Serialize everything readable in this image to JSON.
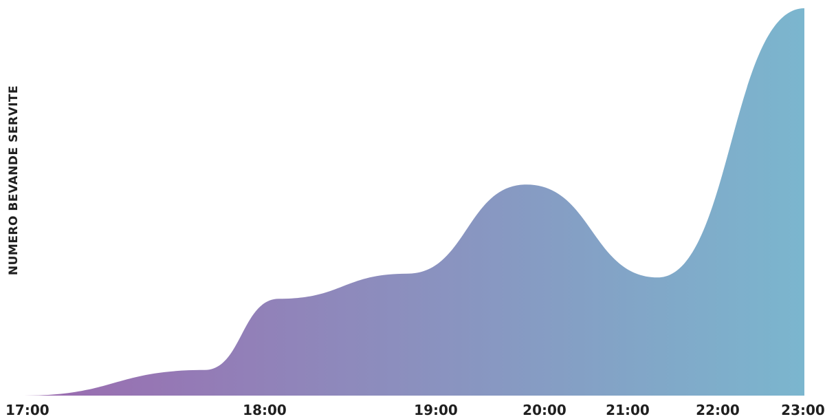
{
  "chart_data": {
    "type": "area",
    "x": [
      "17:00",
      "17:45",
      "18:05",
      "18:50",
      "19:50",
      "21:20",
      "23:00"
    ],
    "tick_labels": [
      "17:00",
      "18:00",
      "19:00",
      "20:00",
      "21:00",
      "22:00",
      "23:00"
    ],
    "values": [
      0,
      6.6,
      25,
      31.5,
      54.5,
      30.5,
      100
    ],
    "ylabel": "NUMERO BEVANDE SERVITE",
    "xlabel": "",
    "grid": false,
    "legend": "none",
    "colors": {
      "gradient_start": "#9b6aaf",
      "gradient_end": "#7bb6ce",
      "text": "#1f1f1f"
    }
  }
}
